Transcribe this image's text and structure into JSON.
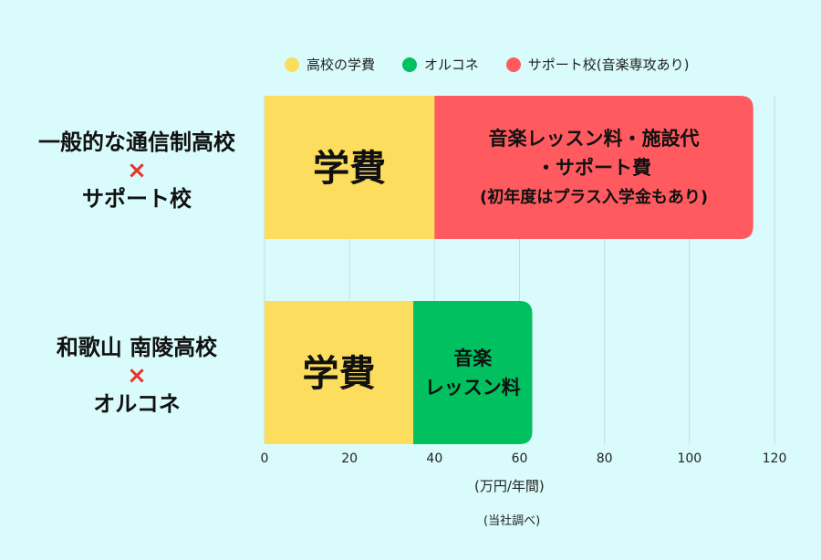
{
  "chart_data": {
    "type": "bar",
    "orientation": "horizontal",
    "stacked": true,
    "categories": [
      [
        "一般的な通信制高校",
        "×",
        "サポート校"
      ],
      [
        "和歌山 南陵高校",
        "×",
        "オルコネ"
      ]
    ],
    "series": [
      {
        "name": "高校の学費",
        "color": "#fcdd5e",
        "values": [
          40,
          35
        ]
      },
      {
        "name": "オルコネ",
        "color": "#00c060",
        "values": [
          0,
          28
        ]
      },
      {
        "name": "サポート校(音楽専攻あり)",
        "color": "#ff5a5f",
        "values": [
          75,
          0
        ]
      }
    ],
    "segment_labels": [
      {
        "category": 0,
        "series": 0,
        "lines": [
          "学費"
        ],
        "size": "large"
      },
      {
        "category": 0,
        "series": 2,
        "lines": [
          "音楽レッスン料・施設代",
          "・サポート費",
          "(初年度はプラス入学金もあり)"
        ],
        "size": "medium"
      },
      {
        "category": 1,
        "series": 0,
        "lines": [
          "学費"
        ],
        "size": "large"
      },
      {
        "category": 1,
        "series": 1,
        "lines": [
          "音楽",
          "レッスン料"
        ],
        "size": "medium"
      }
    ],
    "x_ticks": [
      0,
      20,
      40,
      60,
      80,
      100,
      120
    ],
    "xlim": [
      0,
      120
    ],
    "xlabel": "(万円/年間)",
    "note": "(当社調べ)",
    "legend_position": "top",
    "grid": true
  }
}
